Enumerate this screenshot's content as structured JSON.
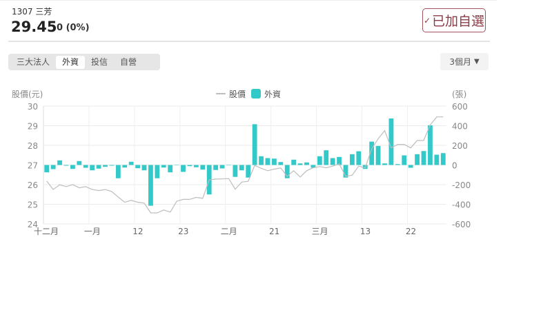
{
  "header": {
    "symbol": "1307 三芳",
    "price": "29.45",
    "change": "0 (0%)",
    "watchlist_label": "已加自選",
    "watchlist_icon": "check-icon"
  },
  "tabs": [
    {
      "label": "三大法人",
      "active": false
    },
    {
      "label": "外資",
      "active": true
    },
    {
      "label": "投信",
      "active": false
    },
    {
      "label": "自營",
      "active": false
    }
  ],
  "range_select": {
    "value": "3個月",
    "icon": "triangle-down-icon"
  },
  "chart_data": {
    "type": "bar+line",
    "left_axis_label": "股價(元)",
    "right_axis_label": "(張)",
    "left_ylim": [
      24,
      30
    ],
    "left_ticks": [
      "30",
      "29",
      "28",
      "27",
      "26",
      "25",
      "24"
    ],
    "right_ylim": [
      -600,
      600
    ],
    "right_ticks": [
      "600",
      "400",
      "200",
      "0",
      "-200",
      "-400",
      "-600"
    ],
    "x_tick_labels": [
      "十二月",
      "一月",
      "12",
      "23",
      "二月",
      "21",
      "三月",
      "13",
      "22"
    ],
    "grid": true,
    "legend_position": "top-center",
    "colors": {
      "price": "#bdbdbd",
      "foreign": "#34c9c9"
    },
    "series": [
      {
        "name": "股價",
        "type": "line",
        "values": [
          26.18,
          25.75,
          25.99,
          25.9,
          26.0,
          25.84,
          25.9,
          25.75,
          25.7,
          25.75,
          25.65,
          25.37,
          25.1,
          25.2,
          25.1,
          25.06,
          24.56,
          24.56,
          24.71,
          24.6,
          25.15,
          25.25,
          25.25,
          25.35,
          25.3,
          26.24,
          26.28,
          26.29,
          26.31,
          25.77,
          26.13,
          26.17,
          26.98,
          26.83,
          26.71,
          26.79,
          26.85,
          26.42,
          26.71,
          26.39,
          26.71,
          26.86,
          26.92,
          26.86,
          26.94,
          27.06,
          26.42,
          26.48,
          26.94,
          26.86,
          27.82,
          28.34,
          28.75,
          27.87,
          28.05,
          28.05,
          27.87,
          28.25,
          28.25,
          29.04,
          29.45,
          29.45
        ]
      },
      {
        "name": "外資",
        "type": "bar",
        "values": [
          -75,
          -42,
          47,
          -7,
          -40,
          40,
          -28,
          -54,
          -37,
          -19,
          -7,
          -135,
          -26,
          33,
          -33,
          -54,
          -415,
          -135,
          -26,
          -75,
          0,
          -70,
          -12,
          -23,
          -47,
          -300,
          -51,
          -35,
          0,
          -121,
          -54,
          -128,
          415,
          89,
          70,
          65,
          30,
          -135,
          54,
          16,
          26,
          -28,
          89,
          150,
          70,
          82,
          -128,
          110,
          140,
          -40,
          238,
          194,
          16,
          474,
          9,
          98,
          -28,
          110,
          142,
          404,
          105,
          121
        ]
      }
    ]
  }
}
